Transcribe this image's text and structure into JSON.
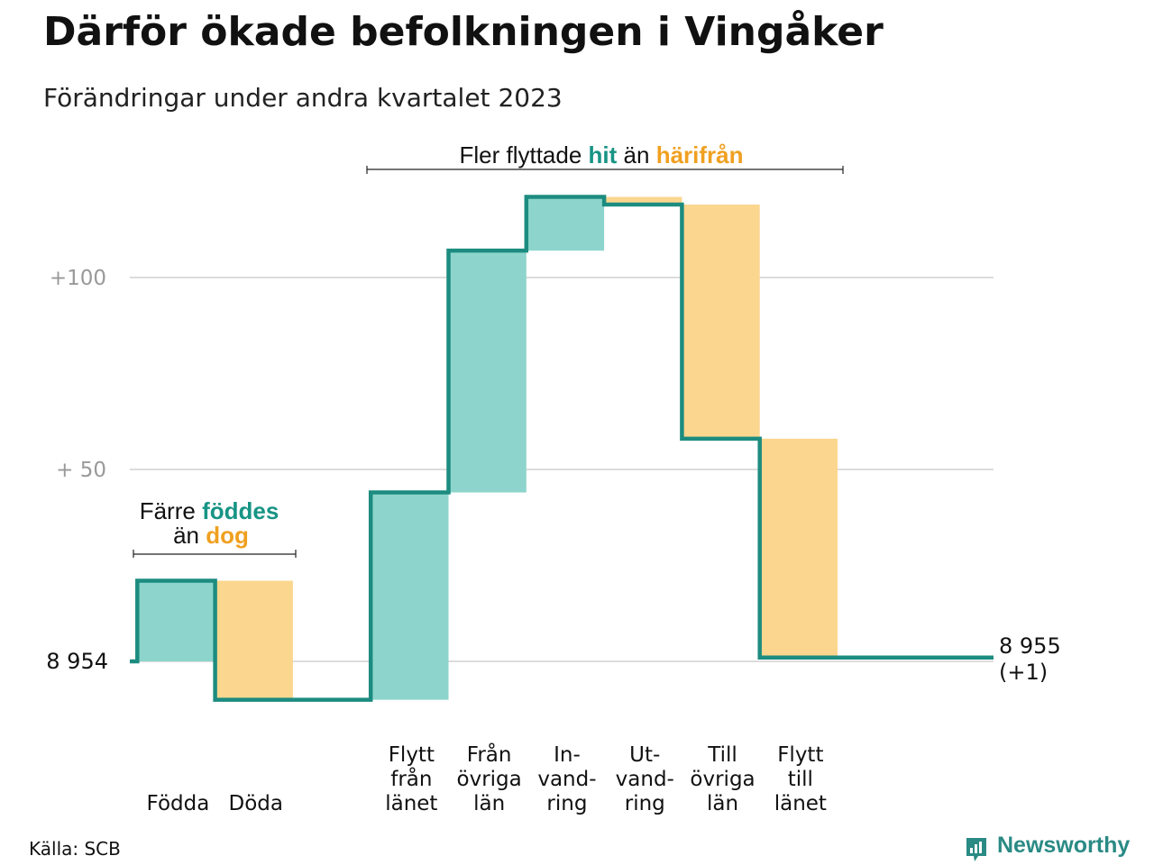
{
  "title": "Därför ökade befolkningen i Vingåker",
  "subtitle": "Förändringar under andra kvartalet 2023",
  "source": "Källa: SCB",
  "brand": "Newsworthy",
  "colors": {
    "positive": "#8dd5cc",
    "negative": "#fbd68e",
    "line": "#1d8c80",
    "teal_text": "#179485",
    "orange_text": "#f0a020",
    "grid": "#dcdcdc",
    "tick": "#999999"
  },
  "annotations": {
    "births": {
      "pre": "Färre",
      "hl1": "föddes",
      "mid": "än",
      "hl2": "dog"
    },
    "migration": {
      "pre": "Fler flyttade",
      "hl1": "hit",
      "mid": "än",
      "hl2": "härifrån"
    }
  },
  "chart_data": {
    "type": "waterfall",
    "title": "Därför ökade befolkningen i Vingåker",
    "subtitle": "Förändringar under andra kvartalet 2023",
    "start_value": 8954,
    "end_value": 8955,
    "start_label": "8  954",
    "end_label": [
      "8 955",
      "(+1)"
    ],
    "ylim": [
      -10,
      127
    ],
    "yticks": [
      {
        "value": 100,
        "label": "+100"
      },
      {
        "value": 50,
        "label": "+  50"
      }
    ],
    "steps": [
      {
        "category": [
          "Födda"
        ],
        "change": 21
      },
      {
        "category": [
          "Döda"
        ],
        "change": -31
      },
      {
        "category": [
          "Flytt",
          "från",
          "länet"
        ],
        "change": 54
      },
      {
        "category": [
          "Från",
          "övriga",
          "län"
        ],
        "change": 63
      },
      {
        "category": [
          "In-",
          "vand-",
          "ring"
        ],
        "change": 14
      },
      {
        "category": [
          "Ut-",
          "vand-",
          "ring"
        ],
        "change": -2
      },
      {
        "category": [
          "Till",
          "övriga",
          "län"
        ],
        "change": -61
      },
      {
        "category": [
          "Flytt",
          "till",
          "länet"
        ],
        "change": -57
      }
    ],
    "gap_after_step": 2
  }
}
